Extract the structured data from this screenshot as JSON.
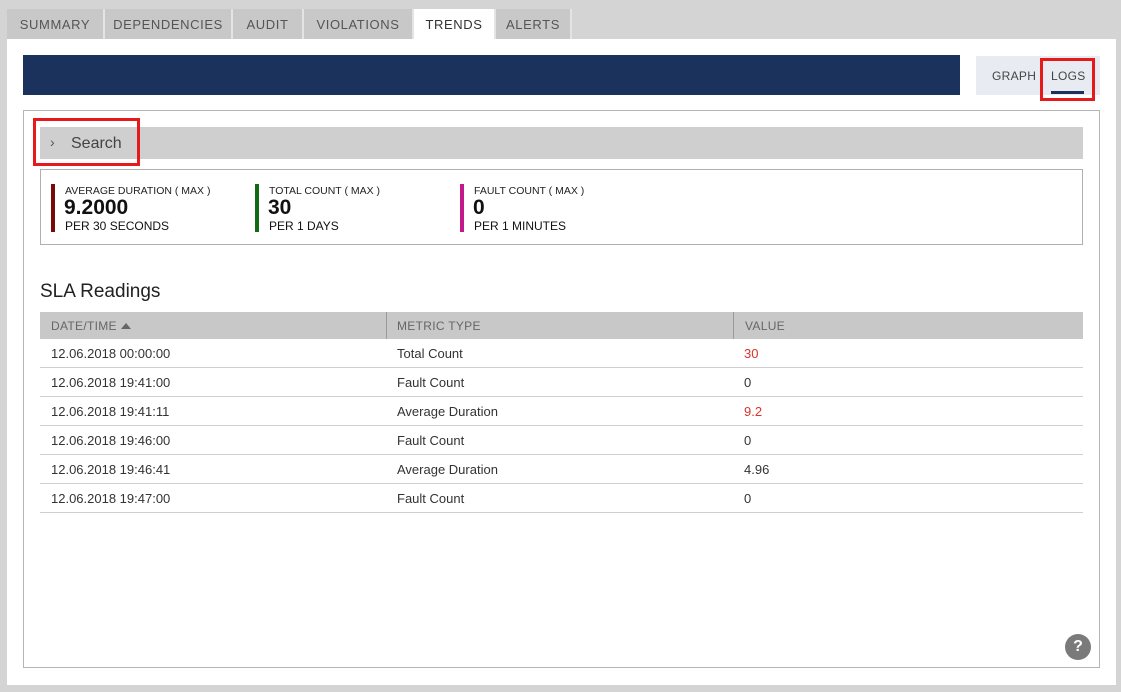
{
  "tabs": [
    {
      "label": "SUMMARY"
    },
    {
      "label": "DEPENDENCIES"
    },
    {
      "label": "AUDIT"
    },
    {
      "label": "VIOLATIONS"
    },
    {
      "label": "TRENDS"
    },
    {
      "label": "ALERTS"
    }
  ],
  "active_tab": "TRENDS",
  "view_toggle": {
    "graph": "GRAPH",
    "logs": "LOGS",
    "selected": "LOGS"
  },
  "search": {
    "label": "Search",
    "chevron": "›"
  },
  "metrics": [
    {
      "label": "AVERAGE DURATION ( MAX )",
      "value": "9.2000",
      "period": "PER 30 SECONDS",
      "color": "#7a0a0a"
    },
    {
      "label": "TOTAL COUNT ( MAX )",
      "value": "30",
      "period": "PER 1 DAYS",
      "color": "#0f6b14"
    },
    {
      "label": "FAULT COUNT ( MAX )",
      "value": "0",
      "period": "PER 1 MINUTES",
      "color": "#c21a8a"
    }
  ],
  "sla": {
    "title": "SLA Readings",
    "columns": [
      "DATE/TIME",
      "METRIC TYPE",
      "VALUE"
    ],
    "sort_column": "DATE/TIME",
    "rows": [
      {
        "datetime": "12.06.2018 00:00:00",
        "metric": "Total Count",
        "value": "30",
        "violation": true
      },
      {
        "datetime": "12.06.2018 19:41:00",
        "metric": "Fault Count",
        "value": "0",
        "violation": false
      },
      {
        "datetime": "12.06.2018 19:41:11",
        "metric": "Average Duration",
        "value": "9.2",
        "violation": true
      },
      {
        "datetime": "12.06.2018 19:46:00",
        "metric": "Fault Count",
        "value": "0",
        "violation": false
      },
      {
        "datetime": "12.06.2018 19:46:41",
        "metric": "Average Duration",
        "value": "4.96",
        "violation": false
      },
      {
        "datetime": "12.06.2018 19:47:00",
        "metric": "Fault Count",
        "value": "0",
        "violation": false
      }
    ]
  },
  "help": {
    "label": "?"
  },
  "colors": {
    "banner": "#1b335c",
    "highlight": "#e51b1b",
    "violation": "#d9342b"
  }
}
